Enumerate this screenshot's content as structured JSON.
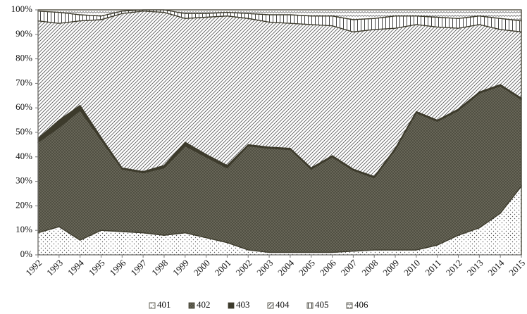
{
  "chart_data": {
    "type": "stacked_area_percent",
    "categories": [
      "1992",
      "1993",
      "1994",
      "1995",
      "1996",
      "1997",
      "1998",
      "1999",
      "2000",
      "2001",
      "2002",
      "2003",
      "2004",
      "2005",
      "2006",
      "2007",
      "2008",
      "2009",
      "2010",
      "2011",
      "2012",
      "2013",
      "2014",
      "2015"
    ],
    "series": [
      {
        "name": "401",
        "color": "#3d3b2c",
        "pattern": "dots",
        "values": [
          9,
          11.5,
          6,
          10,
          9.5,
          9,
          8,
          9,
          7,
          5,
          2,
          1,
          1,
          1,
          1,
          1.5,
          2,
          2,
          2,
          4,
          8,
          11,
          17,
          28
        ]
      },
      {
        "name": "402",
        "color": "#3d3b2c",
        "pattern": "cross",
        "values": [
          37,
          40.5,
          53,
          37,
          25.5,
          24.5,
          27.5,
          35.5,
          33,
          30.5,
          42.5,
          42.5,
          42,
          34,
          39,
          33,
          29.5,
          41,
          56,
          50.5,
          51,
          55,
          52,
          35.5
        ]
      },
      {
        "name": "403",
        "color": "#3d3b2c",
        "pattern": "solid",
        "values": [
          1.5,
          3,
          2,
          1,
          0.5,
          0.5,
          1,
          1.5,
          1,
          1,
          0.5,
          0.5,
          0.5,
          0.5,
          0.5,
          0.5,
          0.5,
          0.5,
          0.5,
          0.5,
          0.5,
          0.5,
          0.5,
          0.5
        ]
      },
      {
        "name": "404",
        "color": "#3d3b2c",
        "pattern": "diagonal",
        "values": [
          48,
          39.5,
          34.5,
          48,
          63,
          65.5,
          62.5,
          50.5,
          56,
          61,
          51.5,
          51,
          51,
          58.5,
          53,
          56,
          60,
          49,
          35.5,
          38,
          33,
          27.5,
          22.5,
          27
        ]
      },
      {
        "name": "405",
        "color": "#3d3b2c",
        "pattern": "vertical",
        "values": [
          4,
          4.5,
          2.5,
          1.5,
          1,
          0.5,
          1,
          2,
          1.5,
          1.5,
          2,
          3,
          3.5,
          3.5,
          4,
          5,
          4.5,
          5,
          3.5,
          4,
          4,
          3.5,
          4.5,
          4.5
        ]
      },
      {
        "name": "406",
        "color": "#3d3b2c",
        "pattern": "zigzag",
        "values": [
          0.5,
          1,
          2,
          2.5,
          0.5,
          0,
          0,
          1.5,
          1.5,
          1,
          1.5,
          2,
          2,
          2.5,
          2.5,
          4,
          3.5,
          2.5,
          2.5,
          3,
          3.5,
          2.5,
          3.5,
          4.5
        ]
      }
    ],
    "ylim": [
      0,
      100
    ],
    "yticks": [
      {
        "value": 0,
        "label": "0%"
      },
      {
        "value": 10,
        "label": "10%"
      },
      {
        "value": 20,
        "label": "20%"
      },
      {
        "value": 30,
        "label": "30%"
      },
      {
        "value": 40,
        "label": "40%"
      },
      {
        "value": 50,
        "label": "50%"
      },
      {
        "value": 60,
        "label": "60%"
      },
      {
        "value": 70,
        "label": "70%"
      },
      {
        "value": 80,
        "label": "80%"
      },
      {
        "value": 90,
        "label": "90%"
      },
      {
        "value": 100,
        "label": "100%"
      }
    ],
    "grid": false,
    "legend": "bottom"
  }
}
